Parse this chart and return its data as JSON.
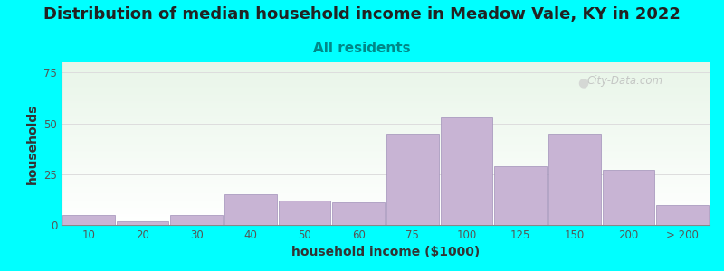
{
  "title": "Distribution of median household income in Meadow Vale, KY in 2022",
  "subtitle": "All residents",
  "xlabel": "household income ($1000)",
  "ylabel": "households",
  "background_color": "#00FFFF",
  "plot_bg_top": "#e8f5e8",
  "plot_bg_bottom": "#ffffff",
  "bar_color": "#C8B4D4",
  "bar_edge_color": "#A090B8",
  "bar_heights": [
    5,
    2,
    5,
    15,
    12,
    11,
    45,
    53,
    29,
    45,
    27,
    10
  ],
  "bar_lefts": [
    0,
    1,
    2,
    3,
    4,
    5,
    6,
    7,
    8,
    9,
    10,
    11
  ],
  "bar_width": 0.97,
  "xtick_positions": [
    0,
    1,
    2,
    3,
    4,
    5,
    6,
    7,
    8,
    9,
    10,
    11
  ],
  "xtick_labels": [
    "10",
    "20",
    "30",
    "40",
    "50",
    "60",
    "75",
    "100",
    "125",
    "150",
    "200",
    "> 200"
  ],
  "ytick_positions": [
    0,
    25,
    50,
    75
  ],
  "ytick_labels": [
    "0",
    "25",
    "50",
    "75"
  ],
  "xlim": [
    -0.5,
    11.5
  ],
  "ylim": [
    0,
    80
  ],
  "watermark_text": "City-Data.com",
  "title_fontsize": 13,
  "subtitle_fontsize": 11,
  "axis_label_fontsize": 10,
  "tick_fontsize": 8.5,
  "grid_color": "#dddddd",
  "axis_color": "#888888",
  "title_color": "#222222",
  "subtitle_color": "#008888",
  "tick_color": "#555555",
  "label_color": "#333333"
}
